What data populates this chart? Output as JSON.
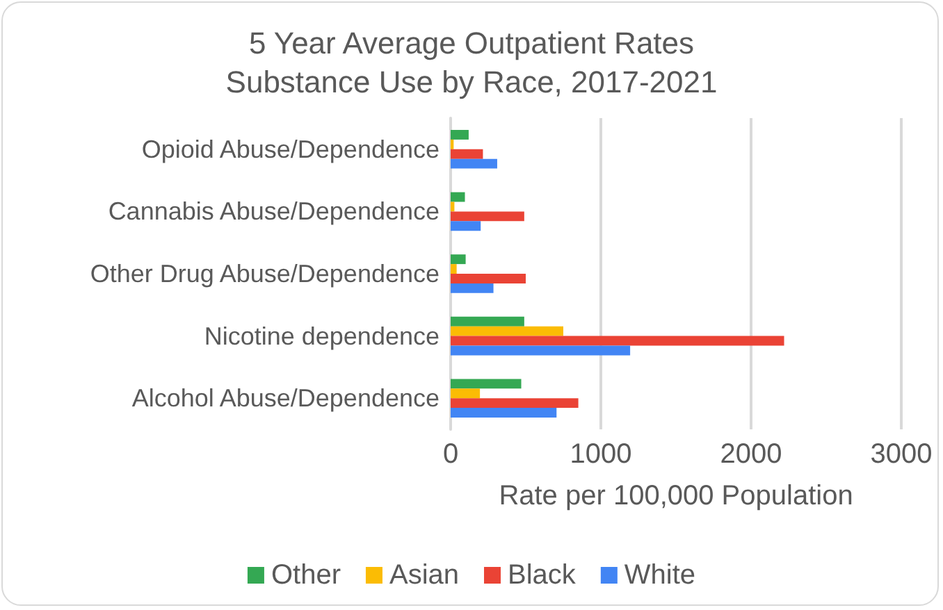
{
  "chart_data": {
    "type": "bar",
    "orientation": "horizontal",
    "title": "5 Year Average Outpatient Rates\nSubstance Use by Race, 2017-2021",
    "xlabel": "Rate per 100,000 Population",
    "categories": [
      "Opioid Abuse/Dependence",
      "Cannabis Abuse/Dependence",
      "Other Drug Abuse/Dependence",
      "Nicotine dependence",
      "Alcohol Abuse/Dependence"
    ],
    "series": [
      {
        "name": "Other",
        "color": "#34a853",
        "values": [
          120,
          95,
          100,
          490,
          470
        ]
      },
      {
        "name": "Asian",
        "color": "#fbbc04",
        "values": [
          20,
          25,
          40,
          750,
          195
        ]
      },
      {
        "name": "Black",
        "color": "#ea4335",
        "values": [
          215,
          490,
          500,
          2220,
          850
        ]
      },
      {
        "name": "White",
        "color": "#4285f4",
        "values": [
          310,
          200,
          285,
          1195,
          705
        ]
      }
    ],
    "xlim": [
      0,
      3000
    ],
    "xticks": [
      0,
      1000,
      2000,
      3000
    ],
    "grid": "x",
    "legend": "bottom"
  }
}
